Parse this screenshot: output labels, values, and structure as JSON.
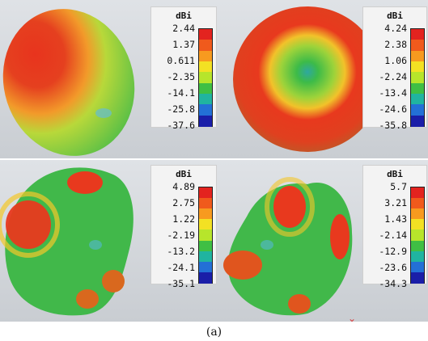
{
  "figure": {
    "caption": "(a)",
    "panels": [
      {
        "id": "top-left",
        "title": "dBi",
        "ticks": [
          "2.44",
          "1.37",
          "0.611",
          "-2.35",
          "-14.1",
          "-25.8",
          "-37.6"
        ]
      },
      {
        "id": "top-right",
        "title": "dBi",
        "ticks": [
          "4.24",
          "2.38",
          "1.06",
          "-2.24",
          "-13.4",
          "-24.6",
          "-35.8"
        ]
      },
      {
        "id": "bottom-left",
        "title": "dBi",
        "ticks": [
          "4.89",
          "2.75",
          "1.22",
          "-2.19",
          "-13.2",
          "-24.1",
          "-35.1"
        ]
      },
      {
        "id": "bottom-right",
        "title": "dBi",
        "ticks": [
          "5.7",
          "3.21",
          "1.43",
          "-2.14",
          "-12.9",
          "-23.6",
          "-34.3"
        ]
      }
    ],
    "colorbar_colors": [
      "#e3231f",
      "#f05a1c",
      "#f79a1f",
      "#f3e123",
      "#b7e52b",
      "#3fbf44",
      "#20b4a0",
      "#2370d6",
      "#1a1ea8"
    ],
    "background_color": "#d3d6da"
  }
}
